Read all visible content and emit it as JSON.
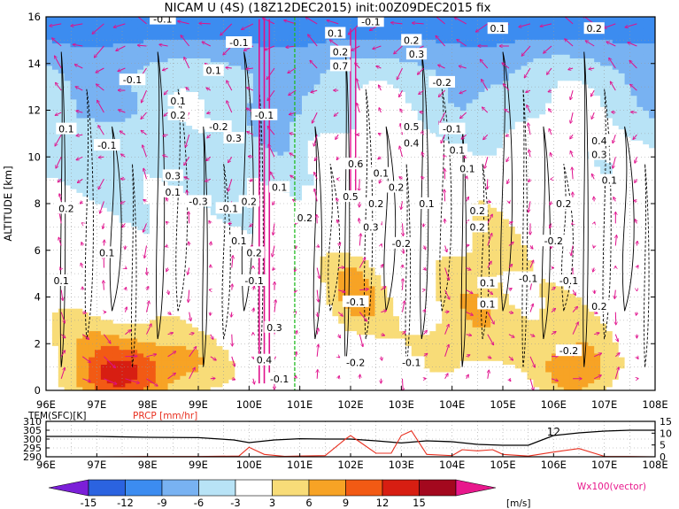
{
  "title": "NICAM U (4S) (18Z12DEC2015) init:00Z09DEC2015 fix",
  "chart_data": [
    {
      "type": "heatmap",
      "title": "NICAM U (4S) (18Z12DEC2015) init:00Z09DEC2015 fix",
      "ylabel": "ALTITUDE [km]",
      "xlabel": "",
      "x_ticks": [
        "96E",
        "97E",
        "98E",
        "99E",
        "100E",
        "101E",
        "102E",
        "103E",
        "104E",
        "105E",
        "106E",
        "107E",
        "108E"
      ],
      "x_range": [
        96,
        108
      ],
      "y_ticks": [
        "0",
        "2",
        "4",
        "6",
        "8",
        "10",
        "12",
        "14",
        "16"
      ],
      "y_range": [
        0,
        16
      ],
      "grid": true,
      "marker_longitude": 100.9,
      "contour_labels": [
        {
          "text": "-0.1",
          "x": 98.3,
          "y": 15.9
        },
        {
          "text": "-0.1",
          "x": 99.8,
          "y": 14.9
        },
        {
          "text": "0.1",
          "x": 101.7,
          "y": 15.3
        },
        {
          "text": "-0.1",
          "x": 102.4,
          "y": 15.8
        },
        {
          "text": "0.2",
          "x": 103.2,
          "y": 15.0
        },
        {
          "text": "0.1",
          "x": 104.9,
          "y": 15.5
        },
        {
          "text": "0.2",
          "x": 106.8,
          "y": 15.5
        },
        {
          "text": "0.1",
          "x": 99.3,
          "y": 13.7
        },
        {
          "text": "-0.1",
          "x": 97.7,
          "y": 13.3
        },
        {
          "text": "0.2",
          "x": 101.8,
          "y": 14.5
        },
        {
          "text": "0.3",
          "x": 103.3,
          "y": 14.4
        },
        {
          "text": "0.7",
          "x": 101.8,
          "y": 13.9
        },
        {
          "text": "-0.2",
          "x": 103.8,
          "y": 13.2
        },
        {
          "text": "0.1",
          "x": 98.6,
          "y": 12.4
        },
        {
          "text": "0.2",
          "x": 98.6,
          "y": 11.8
        },
        {
          "text": "0.1",
          "x": 96.4,
          "y": 11.2
        },
        {
          "text": "-0.2",
          "x": 99.4,
          "y": 11.3
        },
        {
          "text": "-0.1",
          "x": 100.3,
          "y": 11.8
        },
        {
          "text": "0.5",
          "x": 103.2,
          "y": 11.3
        },
        {
          "text": "-0.1",
          "x": 104.0,
          "y": 11.2
        },
        {
          "text": "0.4",
          "x": 103.2,
          "y": 10.6
        },
        {
          "text": "0.1",
          "x": 104.1,
          "y": 10.3
        },
        {
          "text": "0.4",
          "x": 106.9,
          "y": 10.7
        },
        {
          "text": "0.3",
          "x": 106.9,
          "y": 10.1
        },
        {
          "text": "-0.1",
          "x": 97.2,
          "y": 10.5
        },
        {
          "text": "0.3",
          "x": 99.7,
          "y": 10.8
        },
        {
          "text": "0.3",
          "x": 98.5,
          "y": 9.2
        },
        {
          "text": "0.1",
          "x": 98.5,
          "y": 8.5
        },
        {
          "text": "-0.3",
          "x": 99.0,
          "y": 8.1
        },
        {
          "text": "0.6",
          "x": 102.1,
          "y": 9.7
        },
        {
          "text": "0.1",
          "x": 102.6,
          "y": 9.3
        },
        {
          "text": "0.2",
          "x": 102.9,
          "y": 8.7
        },
        {
          "text": "0.1",
          "x": 104.3,
          "y": 9.5
        },
        {
          "text": "0.1",
          "x": 107.1,
          "y": 9.0
        },
        {
          "text": "0.2",
          "x": 96.4,
          "y": 7.8
        },
        {
          "text": "-0.1",
          "x": 99.6,
          "y": 7.8
        },
        {
          "text": "0.2",
          "x": 100.0,
          "y": 8.1
        },
        {
          "text": "0.1",
          "x": 100.6,
          "y": 8.7
        },
        {
          "text": "0.5",
          "x": 102.0,
          "y": 8.3
        },
        {
          "text": "0.2",
          "x": 102.5,
          "y": 8.0
        },
        {
          "text": "0.1",
          "x": 103.5,
          "y": 8.0
        },
        {
          "text": "0.2",
          "x": 104.5,
          "y": 7.7
        },
        {
          "text": "0.2",
          "x": 106.2,
          "y": 8.0
        },
        {
          "text": "0.2",
          "x": 101.1,
          "y": 7.4
        },
        {
          "text": "0.3",
          "x": 102.4,
          "y": 7.0
        },
        {
          "text": "0.2",
          "x": 104.5,
          "y": 7.0
        },
        {
          "text": "0.1",
          "x": 99.8,
          "y": 6.4
        },
        {
          "text": "0.2",
          "x": 100.1,
          "y": 5.9
        },
        {
          "text": "-0.2",
          "x": 106.0,
          "y": 6.4
        },
        {
          "text": "-0.2",
          "x": 103.0,
          "y": 6.3
        },
        {
          "text": "0.1",
          "x": 97.2,
          "y": 5.9
        },
        {
          "text": "0.1",
          "x": 96.3,
          "y": 4.7
        },
        {
          "text": "-0.1",
          "x": 100.1,
          "y": 4.7
        },
        {
          "text": "0.1",
          "x": 104.7,
          "y": 4.6
        },
        {
          "text": "-0.1",
          "x": 105.5,
          "y": 4.8
        },
        {
          "text": "-0.1",
          "x": 106.3,
          "y": 4.7
        },
        {
          "text": "-0.1",
          "x": 102.1,
          "y": 3.8
        },
        {
          "text": "0.1",
          "x": 104.7,
          "y": 3.7
        },
        {
          "text": "0.2",
          "x": 106.9,
          "y": 3.6
        },
        {
          "text": "0.3",
          "x": 100.5,
          "y": 2.7
        },
        {
          "text": "-0.2",
          "x": 106.3,
          "y": 1.7
        },
        {
          "text": "0.4",
          "x": 100.3,
          "y": 1.3
        },
        {
          "text": "-0.2",
          "x": 102.1,
          "y": 1.2
        },
        {
          "text": "-0.1",
          "x": 103.2,
          "y": 1.2
        },
        {
          "text": "-0.1",
          "x": 100.6,
          "y": 0.5
        }
      ]
    },
    {
      "type": "line",
      "series": [
        {
          "name": "TEM(SFC)[K]",
          "x": [
            96,
            97,
            98,
            99,
            99.7,
            100.0,
            100.5,
            101,
            101.5,
            102,
            102.5,
            103.0,
            103.5,
            104,
            104.5,
            105,
            105.5,
            106,
            106.5,
            107,
            107.5,
            108
          ],
          "values": [
            301.5,
            301.5,
            301.0,
            300.8,
            299.5,
            298.0,
            299.5,
            300.2,
            300.0,
            300.0,
            299.0,
            297.8,
            299.0,
            298.5,
            297.0,
            296.5,
            296.5,
            302.0,
            303.5,
            304.5,
            305.0,
            305.0
          ]
        },
        {
          "name": "PRCP [mm/hr]",
          "x": [
            96,
            97,
            98,
            99,
            99.8,
            100.0,
            100.3,
            100.7,
            101,
            101.5,
            101.9,
            102.0,
            102.2,
            102.5,
            102.8,
            103.0,
            103.2,
            103.5,
            104,
            104.2,
            104.5,
            104.8,
            105,
            105.5,
            106,
            106.5,
            107,
            107.5,
            108
          ],
          "values": [
            0,
            0,
            0.1,
            0.1,
            0.3,
            4.0,
            1.0,
            0.2,
            0.3,
            0.5,
            7.5,
            9.0,
            6.0,
            1.5,
            1.5,
            9.0,
            11.0,
            1.0,
            0.5,
            3.0,
            2.5,
            3.0,
            1.0,
            0.3,
            2.0,
            3.5,
            0.2,
            0.1,
            0
          ]
        }
      ],
      "y_ticks_left": [
        "290",
        "295",
        "300",
        "305",
        "310"
      ],
      "y_ticks_right": [
        "0",
        "5",
        "10",
        "15"
      ],
      "marker_label": "12"
    }
  ],
  "bottom_x_ticks": [
    "96E",
    "97E",
    "98E",
    "99E",
    "100E",
    "101E",
    "102E",
    "103E",
    "104E",
    "105E",
    "106E",
    "107E",
    "108E"
  ],
  "colorbar": {
    "ticks": [
      "-15",
      "-12",
      "-9",
      "-6",
      "-3",
      "3",
      "6",
      "9",
      "12",
      "15"
    ],
    "unit": "[m/s]",
    "colors": [
      "#7b1fd8",
      "#2b63e0",
      "#3c8cf0",
      "#78b2f2",
      "#b8e3f6",
      "#ffffff",
      "#f8dc78",
      "#f7a325",
      "#f25a14",
      "#d71e12",
      "#a3081e",
      "#e8188c"
    ]
  },
  "vector_label": "Wx100(vector)",
  "temp_axis_label": "TEM(SFC)[K]",
  "prcp_axis_label": "PRCP [mm/hr]",
  "colors": {
    "contour": "#000000",
    "vector": "#e0108c",
    "marker": "#22bb22",
    "prcp": "#e83020"
  }
}
